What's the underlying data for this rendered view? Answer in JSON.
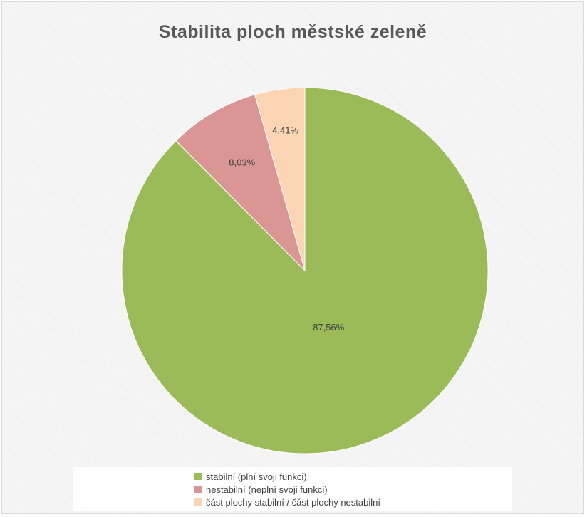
{
  "chart_data": {
    "type": "pie",
    "title": "Stabilita ploch městské zeleně",
    "slices": [
      {
        "label": "stabilní (plní svoji funkci)",
        "value": 87.56,
        "display": "87,56%",
        "color": "#9bbb59"
      },
      {
        "label": "nestabilní (neplní svoji funkci)",
        "value": 8.03,
        "display": "8,03%",
        "color": "#d99694"
      },
      {
        "label": "část plochy stabilní / část plochy nestabilní",
        "value": 4.41,
        "display": "4,41%",
        "color": "#fcd5b5"
      }
    ],
    "start": "12 o'clock",
    "direction": "clockwise",
    "legend_position": "bottom"
  }
}
